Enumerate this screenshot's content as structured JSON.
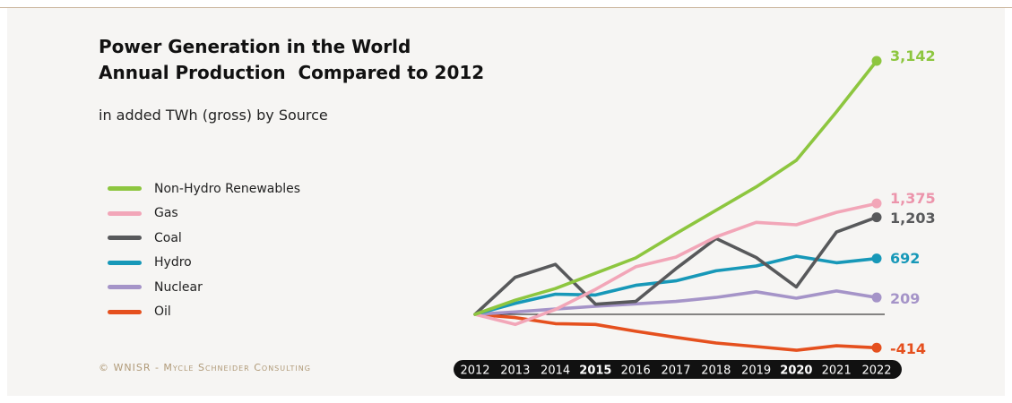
{
  "title_line1": "Power Generation in the World",
  "title_line2": "Annual Production  Compared to 2012",
  "subtitle": "in added TWh (gross) by Source",
  "copyright": "© WNISR - Mycle Schneider Consulting",
  "chart_data": {
    "type": "line",
    "title": "Power Generation in the World Annual Production  Compared to 2012",
    "subtitle": "in added TWh (gross) by Source",
    "x": [
      "2012",
      "2013",
      "2014",
      "2015",
      "2016",
      "2017",
      "2018",
      "2019",
      "2020",
      "2021",
      "2022"
    ],
    "bold_ticks": [
      "2015",
      "2020"
    ],
    "ylim": [
      -500,
      3300
    ],
    "grid": false,
    "legend_position": "left",
    "series": [
      {
        "name": "Non-Hydro Renewables",
        "color": "#8dc63f",
        "end_label": "3,142",
        "label_color": "#8dc63f",
        "values": [
          0,
          175,
          320,
          510,
          700,
          1000,
          1290,
          1580,
          1910,
          2510,
          3142
        ]
      },
      {
        "name": "Gas",
        "color": "#f2a6b8",
        "end_label": "1,375",
        "label_color": "#ec94ab",
        "values": [
          0,
          -125,
          60,
          310,
          590,
          710,
          960,
          1140,
          1110,
          1265,
          1375
        ]
      },
      {
        "name": "Coal",
        "color": "#58595b",
        "end_label": "1,203",
        "label_color": "#58595b",
        "values": [
          0,
          460,
          620,
          125,
          160,
          565,
          940,
          705,
          340,
          1020,
          1203
        ]
      },
      {
        "name": "Hydro",
        "color": "#1798b8",
        "end_label": "692",
        "label_color": "#1798b8",
        "values": [
          0,
          135,
          250,
          240,
          360,
          415,
          540,
          600,
          720,
          640,
          692
        ]
      },
      {
        "name": "Nuclear",
        "color": "#a594c8",
        "end_label": "209",
        "label_color": "#a594c8",
        "values": [
          0,
          30,
          65,
          100,
          130,
          160,
          210,
          280,
          200,
          290,
          209
        ]
      },
      {
        "name": "Oil",
        "color": "#e5501e",
        "end_label": "-414",
        "label_color": "#e5501e",
        "values": [
          0,
          -40,
          -115,
          -125,
          -210,
          -285,
          -355,
          -400,
          -445,
          -390,
          -414
        ]
      }
    ]
  }
}
